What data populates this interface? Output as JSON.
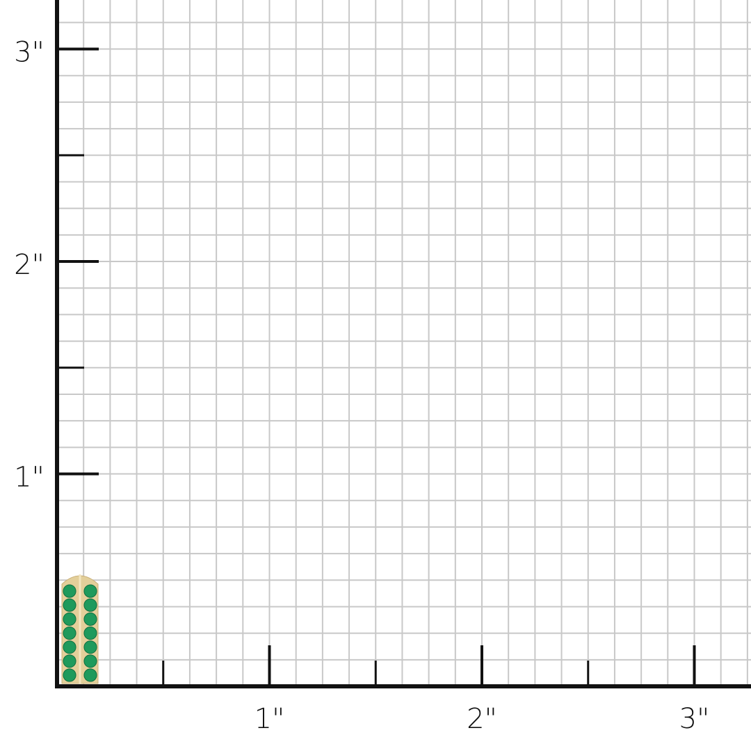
{
  "scale": {
    "unit": "inch",
    "x_labels": [
      "1\"",
      "2\"",
      "3\""
    ],
    "y_labels": [
      "1\"",
      "2\"",
      "3\""
    ],
    "grid_divisions_per_inch": 8,
    "grid_color": "#c8c8c8",
    "axis_color": "#111111"
  },
  "product": {
    "type": "earring",
    "metal_color": "#e3cf9a",
    "stone_color": "#1f9a5c",
    "stones_per_column": 7,
    "columns": 2,
    "height_inches": 0.54
  }
}
